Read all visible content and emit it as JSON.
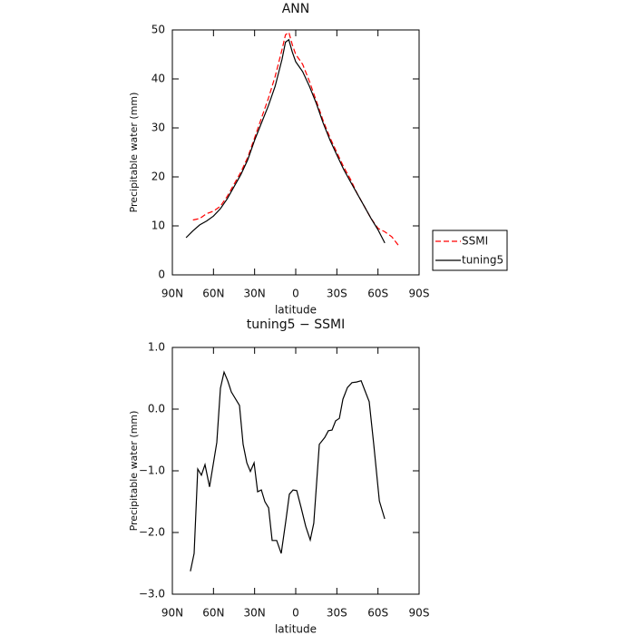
{
  "chart_data": [
    {
      "type": "line",
      "title": "ANN",
      "xlabel": "latitude",
      "ylabel": "Precipitable water  (mm)",
      "x": [
        80,
        75,
        70,
        65,
        60,
        55,
        50,
        45,
        40,
        35,
        30,
        25,
        20,
        15,
        10,
        7.5,
        5,
        2.5,
        0,
        -2.5,
        -5,
        -10,
        -15,
        -20,
        -25,
        -30,
        -35,
        -40,
        -45,
        -50,
        -55,
        -60,
        -65,
        -70,
        -75
      ],
      "series": [
        {
          "name": "SSMI",
          "color": "#ff0000",
          "dash": true,
          "values": [
            null,
            11.2,
            11.5,
            12.5,
            13,
            14,
            16,
            18.5,
            21,
            24,
            28,
            32,
            36,
            40.5,
            46,
            49,
            49.5,
            47,
            45,
            44,
            43,
            39.5,
            35.5,
            31.5,
            28,
            25,
            22,
            19.5,
            16.5,
            14,
            11.5,
            9.5,
            8.8,
            7.8,
            6
          ]
        },
        {
          "name": "tuning5",
          "color": "#000000",
          "dash": false,
          "values": [
            7.6,
            9,
            10.2,
            11,
            12,
            13.5,
            15.5,
            18,
            20.5,
            23.5,
            27.5,
            31,
            34.5,
            38.5,
            44,
            47.5,
            48,
            45.5,
            43.5,
            42.5,
            41.5,
            38.5,
            35,
            31,
            27.5,
            24.5,
            21.5,
            19,
            16.5,
            14,
            11.5,
            9.2,
            6.5,
            null,
            null
          ]
        }
      ],
      "xlim": [
        90,
        -90
      ],
      "xticks": [
        {
          "value": 90,
          "label": "90N"
        },
        {
          "value": 60,
          "label": "60N"
        },
        {
          "value": 30,
          "label": "30N"
        },
        0,
        {
          "value": -30,
          "label": "30S"
        },
        {
          "value": -60,
          "label": "60S"
        },
        {
          "value": -90,
          "label": "90S"
        }
      ],
      "ylim": [
        0,
        50
      ],
      "yticks": [
        0,
        10,
        20,
        30,
        40,
        50
      ],
      "legend": "right"
    },
    {
      "type": "line",
      "title": "tuning5 − SSMI",
      "xlabel": "latitude",
      "ylabel": "Precipitable water  (mm)",
      "x": [
        76.8,
        74.1,
        71.5,
        68.8,
        66.2,
        62.9,
        57.6,
        54.9,
        52.3,
        49.6,
        47,
        41,
        38.4,
        35.7,
        33.1,
        30.4,
        27.8,
        25.1,
        22.5,
        19.8,
        17.2,
        13.9,
        10.6,
        7.3,
        4.6,
        2,
        -0.7,
        -4,
        -7.3,
        -10.6,
        -13.2,
        -17.2,
        -21.2,
        -23.8,
        -26.5,
        -29.1,
        -31.8,
        -34.4,
        -37.7,
        -41,
        -44.4,
        -47.7,
        -50.3,
        -53.6,
        -56.9,
        -61,
        -64.9
      ],
      "series": [
        {
          "name": "tuning5 − SSMI",
          "color": "#000000",
          "dash": false,
          "values": [
            -2.63,
            -2.34,
            -0.97,
            -1.07,
            -0.9,
            -1.26,
            -0.54,
            0.34,
            0.6,
            0.46,
            0.28,
            0.06,
            -0.57,
            -0.87,
            -1.01,
            -0.87,
            -1.34,
            -1.31,
            -1.5,
            -1.6,
            -2.13,
            -2.13,
            -2.34,
            -1.82,
            -1.38,
            -1.31,
            -1.32,
            -1.6,
            -1.9,
            -2.12,
            -1.85,
            -0.57,
            -0.46,
            -0.35,
            -0.34,
            -0.19,
            -0.15,
            0.16,
            0.35,
            0.43,
            0.44,
            0.46,
            0.31,
            0.12,
            -0.57,
            -1.49,
            -1.78
          ]
        }
      ],
      "xlim": [
        90,
        -90
      ],
      "xticks": [
        {
          "value": 90,
          "label": "90N"
        },
        {
          "value": 60,
          "label": "60N"
        },
        {
          "value": 30,
          "label": "30N"
        },
        0,
        {
          "value": -30,
          "label": "30S"
        },
        {
          "value": -60,
          "label": "60S"
        },
        {
          "value": -90,
          "label": "90S"
        }
      ],
      "ylim": [
        -3,
        1
      ],
      "yticks": [
        {
          "value": 1,
          "label": "1.0"
        },
        {
          "value": 0,
          "label": "0.0"
        },
        {
          "value": -1,
          "label": "−1.0"
        },
        {
          "value": -2,
          "label": "−2.0"
        },
        {
          "value": -3,
          "label": "−3.0"
        }
      ]
    }
  ]
}
